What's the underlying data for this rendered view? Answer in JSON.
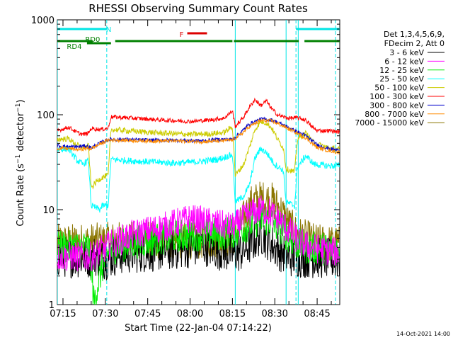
{
  "chart_data": {
    "type": "line",
    "title": "RHESSI Observing Summary Count Rates",
    "xlabel": "Start Time (22-Jan-04 07:14:22)",
    "ylabel": "Count Rate (s⁻¹ detector⁻¹)",
    "y_scale": "log",
    "ylim": [
      1,
      1000
    ],
    "xlim_minutes": [
      -2,
      98
    ],
    "x_ticks": [
      {
        "m": 0,
        "label": "07:15"
      },
      {
        "m": 15,
        "label": "07:30"
      },
      {
        "m": 30,
        "label": "07:45"
      },
      {
        "m": 45,
        "label": "08:00"
      },
      {
        "m": 60,
        "label": "08:15"
      },
      {
        "m": 75,
        "label": "08:30"
      },
      {
        "m": 90,
        "label": "08:45"
      }
    ],
    "y_ticks": [
      {
        "v": 1,
        "label": "1"
      },
      {
        "v": 10,
        "label": "10"
      },
      {
        "v": 100,
        "label": "100"
      },
      {
        "v": 1000,
        "label": "1000"
      }
    ],
    "legend_header": [
      "Det 1,3,4,5,6,9,",
      "FDecim 2, Att 0"
    ],
    "footer_date": "14-Oct-2021 14:00",
    "series": [
      {
        "name": "3 - 6 keV",
        "color": "#000000",
        "points": [
          [
            -2,
            3.2
          ],
          [
            10,
            3.1
          ],
          [
            11,
            3.3
          ],
          [
            15,
            3
          ],
          [
            20,
            3.4
          ],
          [
            30,
            3.6
          ],
          [
            40,
            3.8
          ],
          [
            45,
            4
          ],
          [
            50,
            4.2
          ],
          [
            55,
            3.8
          ],
          [
            60,
            3.5
          ],
          [
            63,
            3.6
          ],
          [
            67,
            4.5
          ],
          [
            70,
            5.5
          ],
          [
            72,
            5
          ],
          [
            75,
            4
          ],
          [
            78,
            3.5
          ],
          [
            80,
            3.2
          ],
          [
            90,
            3.1
          ],
          [
            98,
            3
          ]
        ]
      },
      {
        "name": "6 - 12 keV",
        "color": "#ff00ff",
        "points": [
          [
            -2,
            3.2
          ],
          [
            10,
            3.2
          ],
          [
            14,
            3.8
          ],
          [
            18,
            4.5
          ],
          [
            25,
            5.5
          ],
          [
            35,
            6.5
          ],
          [
            45,
            8
          ],
          [
            50,
            7.5
          ],
          [
            55,
            7
          ],
          [
            60,
            6.5
          ],
          [
            63,
            7.5
          ],
          [
            66,
            9
          ],
          [
            70,
            10
          ],
          [
            73,
            9.5
          ],
          [
            76,
            8
          ],
          [
            80,
            6
          ],
          [
            84,
            4.5
          ],
          [
            88,
            4
          ],
          [
            98,
            3.5
          ]
        ]
      },
      {
        "name": "12 - 25 keV",
        "color": "#00ee00",
        "points": [
          [
            -2,
            4
          ],
          [
            9,
            4
          ],
          [
            10,
            2.5
          ],
          [
            11,
            1
          ],
          [
            12,
            1.5
          ],
          [
            14,
            2.5
          ],
          [
            16,
            3.5
          ],
          [
            18,
            4
          ],
          [
            25,
            4.5
          ],
          [
            35,
            5
          ],
          [
            45,
            5.5
          ],
          [
            55,
            5.5
          ],
          [
            62,
            6
          ],
          [
            66,
            7
          ],
          [
            70,
            8
          ],
          [
            74,
            7.5
          ],
          [
            78,
            6
          ],
          [
            82,
            4.5
          ],
          [
            86,
            4
          ],
          [
            98,
            3.8
          ]
        ]
      },
      {
        "name": "25 - 50 keV",
        "color": "#00ffff",
        "points": [
          [
            -2,
            43
          ],
          [
            2,
            44
          ],
          [
            5,
            33
          ],
          [
            7,
            30
          ],
          [
            9,
            33
          ],
          [
            10,
            11
          ],
          [
            13,
            10
          ],
          [
            14,
            11
          ],
          [
            16,
            11
          ],
          [
            17,
            34
          ],
          [
            22,
            33
          ],
          [
            30,
            32
          ],
          [
            40,
            31
          ],
          [
            48,
            32
          ],
          [
            55,
            34
          ],
          [
            60,
            38
          ],
          [
            61,
            12
          ],
          [
            64,
            14
          ],
          [
            66,
            18
          ],
          [
            68,
            35
          ],
          [
            70,
            44
          ],
          [
            72,
            40
          ],
          [
            75,
            30
          ],
          [
            78,
            26
          ],
          [
            79,
            12
          ],
          [
            82,
            11
          ],
          [
            83,
            28
          ],
          [
            86,
            37
          ],
          [
            89,
            30
          ],
          [
            94,
            29
          ],
          [
            98,
            29
          ]
        ]
      },
      {
        "name": "50 - 100 keV",
        "color": "#cccc00",
        "points": [
          [
            -2,
            55
          ],
          [
            2,
            56
          ],
          [
            5,
            48
          ],
          [
            7,
            45
          ],
          [
            9,
            47
          ],
          [
            10,
            17
          ],
          [
            12,
            20
          ],
          [
            14,
            22
          ],
          [
            16,
            23
          ],
          [
            17,
            70
          ],
          [
            25,
            67
          ],
          [
            35,
            64
          ],
          [
            45,
            62
          ],
          [
            52,
            63
          ],
          [
            57,
            65
          ],
          [
            60,
            75
          ],
          [
            61,
            23
          ],
          [
            64,
            30
          ],
          [
            66,
            45
          ],
          [
            68,
            70
          ],
          [
            70,
            85
          ],
          [
            72,
            82
          ],
          [
            74,
            72
          ],
          [
            76,
            55
          ],
          [
            78,
            45
          ],
          [
            79,
            27
          ],
          [
            82,
            25
          ],
          [
            83,
            55
          ],
          [
            86,
            64
          ],
          [
            89,
            50
          ],
          [
            94,
            45
          ],
          [
            98,
            43
          ]
        ]
      },
      {
        "name": "100 - 300 keV",
        "color": "#ff0000",
        "points": [
          [
            -2,
            68
          ],
          [
            2,
            74
          ],
          [
            5,
            65
          ],
          [
            7,
            62
          ],
          [
            9,
            64
          ],
          [
            10,
            72
          ],
          [
            13,
            70
          ],
          [
            16,
            72
          ],
          [
            17,
            95
          ],
          [
            25,
            92
          ],
          [
            35,
            88
          ],
          [
            45,
            85
          ],
          [
            52,
            88
          ],
          [
            57,
            92
          ],
          [
            60,
            110
          ],
          [
            61,
            75
          ],
          [
            64,
            95
          ],
          [
            66,
            120
          ],
          [
            68,
            145
          ],
          [
            70,
            125
          ],
          [
            72,
            140
          ],
          [
            74,
            115
          ],
          [
            76,
            100
          ],
          [
            78,
            95
          ],
          [
            80,
            92
          ],
          [
            83,
            93
          ],
          [
            86,
            88
          ],
          [
            88,
            75
          ],
          [
            90,
            68
          ],
          [
            94,
            68
          ],
          [
            98,
            66
          ]
        ]
      },
      {
        "name": "300 - 800 keV",
        "color": "#0000cc",
        "points": [
          [
            -2,
            47
          ],
          [
            2,
            46
          ],
          [
            5,
            46
          ],
          [
            8,
            47
          ],
          [
            10,
            45
          ],
          [
            13,
            50
          ],
          [
            16,
            55
          ],
          [
            20,
            55
          ],
          [
            30,
            54
          ],
          [
            40,
            54
          ],
          [
            50,
            53
          ],
          [
            55,
            55
          ],
          [
            60,
            55
          ],
          [
            63,
            65
          ],
          [
            66,
            80
          ],
          [
            70,
            90
          ],
          [
            74,
            88
          ],
          [
            78,
            78
          ],
          [
            82,
            68
          ],
          [
            86,
            60
          ],
          [
            90,
            48
          ],
          [
            94,
            44
          ],
          [
            98,
            42
          ]
        ]
      },
      {
        "name": "800 - 7000 keV",
        "color": "#ff8c00",
        "points": [
          [
            -2,
            44
          ],
          [
            2,
            44
          ],
          [
            5,
            43
          ],
          [
            8,
            44
          ],
          [
            10,
            44
          ],
          [
            13,
            49
          ],
          [
            16,
            54
          ],
          [
            20,
            54
          ],
          [
            30,
            53
          ],
          [
            40,
            53
          ],
          [
            50,
            52
          ],
          [
            55,
            53
          ],
          [
            60,
            54
          ],
          [
            63,
            62
          ],
          [
            66,
            75
          ],
          [
            70,
            87
          ],
          [
            74,
            86
          ],
          [
            78,
            76
          ],
          [
            82,
            66
          ],
          [
            86,
            57
          ],
          [
            90,
            45
          ],
          [
            94,
            42
          ],
          [
            98,
            40
          ]
        ]
      },
      {
        "name": "7000 - 15000 keV",
        "color": "#8b7500",
        "points": [
          [
            -2,
            4.5
          ],
          [
            10,
            4.6
          ],
          [
            20,
            4.8
          ],
          [
            30,
            4.8
          ],
          [
            40,
            4.7
          ],
          [
            50,
            4.7
          ],
          [
            58,
            4.8
          ],
          [
            61,
            5.5
          ],
          [
            64,
            8
          ],
          [
            67,
            12
          ],
          [
            70,
            13
          ],
          [
            74,
            12.5
          ],
          [
            77,
            10
          ],
          [
            80,
            7
          ],
          [
            83,
            5.5
          ],
          [
            86,
            5
          ],
          [
            90,
            4.5
          ],
          [
            98,
            4.3
          ]
        ]
      }
    ],
    "annotations": {
      "flags": [
        {
          "label": "N",
          "color": "#00e5e5",
          "label_at": 16.2,
          "segments": [
            [
              -2,
              15.5
            ],
            [
              82.5,
              98
            ]
          ]
        },
        {
          "label": "F",
          "color": "#dd0000",
          "label_at": 42,
          "segments": [
            [
              44,
              51
            ]
          ]
        },
        {
          "label": "RD0",
          "color": "#008000",
          "label_at": 10.5,
          "segments": [
            [
              8.5,
              17
            ]
          ]
        },
        {
          "label": "RD4",
          "color": "#008000",
          "label_at": 4,
          "segments": [
            [
              -2,
              10.5
            ],
            [
              18.5,
              60
            ],
            [
              60.5,
              83.5
            ],
            [
              85.5,
              98
            ]
          ]
        }
      ],
      "vlines_solid": [
        -2,
        61,
        79,
        83.3
      ],
      "vlines_dashed": [
        15.5,
        82.5,
        96.5
      ]
    }
  }
}
